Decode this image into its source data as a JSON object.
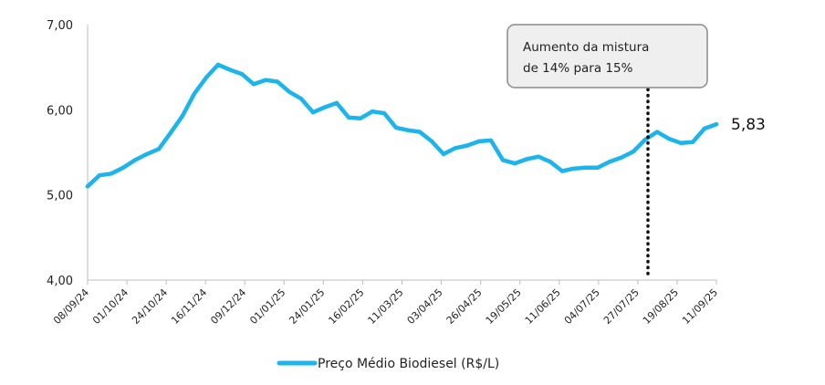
{
  "chart_data": {
    "type": "line",
    "title": "",
    "xlabel": "",
    "ylabel": "",
    "ylim": [
      4,
      7
    ],
    "yticks": [
      "4,00",
      "5,00",
      "6,00",
      "7,00"
    ],
    "xtick_labels": [
      "08/09/24",
      "01/10/24",
      "24/10/24",
      "16/11/24",
      "09/12/24",
      "01/01/25",
      "24/01/25",
      "16/02/25",
      "11/03/25",
      "03/04/25",
      "26/04/25",
      "19/05/25",
      "11/06/25",
      "04/07/25",
      "27/07/25",
      "19/08/25",
      "11/09/25"
    ],
    "grid": false,
    "legend_position": "bottom",
    "series": [
      {
        "name": "Preço Médio Biodiesel (R$/L)",
        "color": "#1cb4ec",
        "values": [
          5.1,
          5.23,
          5.25,
          5.32,
          5.41,
          5.48,
          5.54,
          5.73,
          5.93,
          6.19,
          6.38,
          6.53,
          6.47,
          6.42,
          6.3,
          6.35,
          6.33,
          6.21,
          6.13,
          5.97,
          6.03,
          6.08,
          5.91,
          5.9,
          5.98,
          5.96,
          5.79,
          5.76,
          5.74,
          5.63,
          5.48,
          5.55,
          5.58,
          5.63,
          5.64,
          5.41,
          5.37,
          5.42,
          5.45,
          5.39,
          5.28,
          5.31,
          5.32,
          5.32,
          5.39,
          5.44,
          5.51,
          5.65,
          5.74,
          5.66,
          5.61,
          5.62,
          5.78,
          5.83
        ]
      }
    ],
    "end_label": "5,83",
    "annotation": {
      "line1": "Aumento da mistura",
      "line2": "de 14% para 15%",
      "at_index": 47
    }
  }
}
